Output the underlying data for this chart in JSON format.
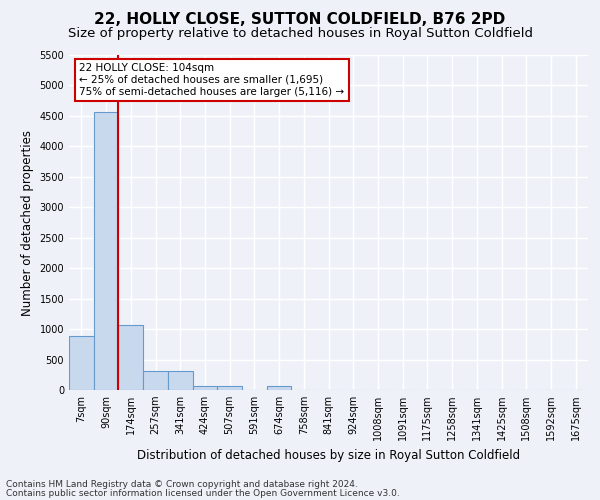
{
  "title": "22, HOLLY CLOSE, SUTTON COLDFIELD, B76 2PD",
  "subtitle": "Size of property relative to detached houses in Royal Sutton Coldfield",
  "xlabel": "Distribution of detached houses by size in Royal Sutton Coldfield",
  "ylabel": "Number of detached properties",
  "footnote1": "Contains HM Land Registry data © Crown copyright and database right 2024.",
  "footnote2": "Contains public sector information licensed under the Open Government Licence v3.0.",
  "categories": [
    "7sqm",
    "90sqm",
    "174sqm",
    "257sqm",
    "341sqm",
    "424sqm",
    "507sqm",
    "591sqm",
    "674sqm",
    "758sqm",
    "841sqm",
    "924sqm",
    "1008sqm",
    "1091sqm",
    "1175sqm",
    "1258sqm",
    "1341sqm",
    "1425sqm",
    "1508sqm",
    "1592sqm",
    "1675sqm"
  ],
  "values": [
    880,
    4560,
    1060,
    310,
    310,
    70,
    60,
    0,
    65,
    0,
    0,
    0,
    0,
    0,
    0,
    0,
    0,
    0,
    0,
    0,
    0
  ],
  "bar_color": "#c8d9ee",
  "bar_edge_color": "#6699cc",
  "property_line_x": 1.5,
  "property_line_color": "#cc0000",
  "annotation_text": "22 HOLLY CLOSE: 104sqm\n← 25% of detached houses are smaller (1,695)\n75% of semi-detached houses are larger (5,116) →",
  "annotation_box_color": "#ffffff",
  "annotation_box_edge_color": "#cc0000",
  "ylim": [
    0,
    5500
  ],
  "yticks": [
    0,
    500,
    1000,
    1500,
    2000,
    2500,
    3000,
    3500,
    4000,
    4500,
    5000,
    5500
  ],
  "background_color": "#eef2f8",
  "plot_background_color": "#eef2f8",
  "grid_color": "#ffffff",
  "title_fontsize": 11,
  "subtitle_fontsize": 9.5,
  "tick_fontsize": 7,
  "ylabel_fontsize": 8.5,
  "xlabel_fontsize": 8.5,
  "footnote_fontsize": 6.5
}
